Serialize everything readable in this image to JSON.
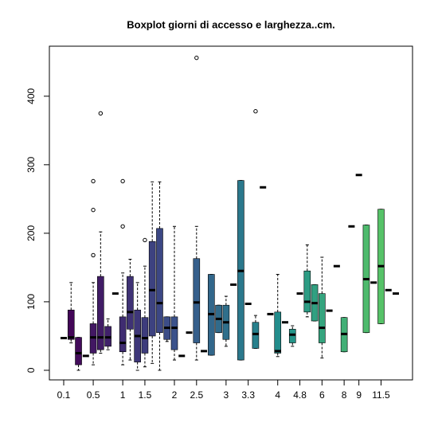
{
  "chart_data": {
    "type": "boxplot",
    "title": "Boxplot giorni di accesso e larghezza..cm.",
    "categories": [
      "0.1",
      null,
      null,
      null,
      "0.5",
      null,
      null,
      null,
      "1",
      null,
      null,
      "1.5",
      null,
      null,
      null,
      "2",
      null,
      null,
      "2.5",
      null,
      null,
      null,
      "3",
      null,
      null,
      "3.3",
      null,
      null,
      null,
      "4",
      null,
      null,
      "4.8",
      null,
      null,
      "6",
      null,
      null,
      "8",
      null,
      "9",
      null,
      null,
      "11.5",
      null,
      null
    ],
    "stats": [
      [
        47,
        47,
        47,
        47,
        47
      ],
      [
        40,
        45,
        48,
        88,
        128
      ],
      [
        0,
        8,
        25,
        48,
        48
      ],
      [
        21,
        21,
        21,
        21,
        21
      ],
      [
        8,
        25,
        48,
        68,
        128
      ],
      [
        25,
        30,
        48,
        137,
        202
      ],
      [
        30,
        35,
        48,
        64,
        75
      ],
      [
        112,
        112,
        112,
        112,
        112
      ],
      [
        8,
        27,
        40,
        78,
        142
      ],
      [
        15,
        60,
        85,
        137,
        162
      ],
      [
        0,
        12,
        50,
        88,
        128
      ],
      [
        5,
        25,
        47,
        77,
        152
      ],
      [
        10,
        50,
        117,
        188,
        275
      ],
      [
        0,
        55,
        98,
        207,
        275
      ],
      [
        42,
        45,
        62,
        78,
        78
      ],
      [
        15,
        30,
        62,
        78,
        210
      ],
      [
        21,
        21,
        21,
        21,
        21
      ],
      [
        55,
        55,
        55,
        55,
        55
      ],
      [
        15,
        40,
        99,
        163,
        210
      ],
      [
        28,
        28,
        28,
        28,
        28
      ],
      [
        22,
        22,
        82,
        140,
        140
      ],
      [
        55,
        55,
        75,
        95,
        95
      ],
      [
        35,
        45,
        70,
        95,
        108
      ],
      [
        125,
        125,
        125,
        125,
        125
      ],
      [
        15,
        15,
        145,
        277,
        277
      ],
      [
        97,
        97,
        97,
        97,
        97
      ],
      [
        32,
        32,
        53,
        70,
        80
      ],
      [
        267,
        267,
        267,
        267,
        267
      ],
      [
        82,
        82,
        82,
        82,
        82
      ],
      [
        20,
        25,
        28,
        85,
        140
      ],
      [
        70,
        70,
        70,
        70,
        70
      ],
      [
        35,
        40,
        52,
        60,
        65
      ],
      [
        112,
        112,
        112,
        112,
        112
      ],
      [
        78,
        85,
        100,
        145,
        183
      ],
      [
        72,
        72,
        98,
        125,
        125
      ],
      [
        18,
        40,
        62,
        112,
        165
      ],
      [
        87,
        87,
        87,
        87,
        87
      ],
      [
        152,
        152,
        152,
        152,
        152
      ],
      [
        27,
        27,
        53,
        77,
        77
      ],
      [
        210,
        210,
        210,
        210,
        210
      ],
      [
        285,
        285,
        285,
        285,
        285
      ],
      [
        55,
        55,
        133,
        212,
        212
      ],
      [
        128,
        128,
        128,
        128,
        128
      ],
      [
        68,
        68,
        152,
        235,
        235
      ],
      [
        117,
        117,
        117,
        117,
        117
      ],
      [
        112,
        112,
        112,
        112,
        112
      ]
    ],
    "outliers": [
      [],
      [],
      [],
      [],
      [
        168,
        234,
        276
      ],
      [
        375
      ],
      [],
      [],
      [
        210,
        276
      ],
      [],
      [],
      [
        190
      ],
      [],
      [],
      [],
      [],
      [],
      [],
      [
        456
      ],
      [],
      [],
      [],
      [],
      [],
      [],
      [],
      [
        378
      ],
      [],
      [],
      [],
      [],
      [],
      [],
      [],
      [],
      [],
      [],
      [],
      [],
      [],
      [],
      [],
      [],
      [],
      [],
      []
    ],
    "palette": [
      "#440154",
      "#3b528b",
      "#21918c",
      "#5ec962"
    ],
    "ylim": [
      -14,
      473
    ],
    "yticks": [
      0,
      100,
      200,
      300,
      400
    ]
  }
}
